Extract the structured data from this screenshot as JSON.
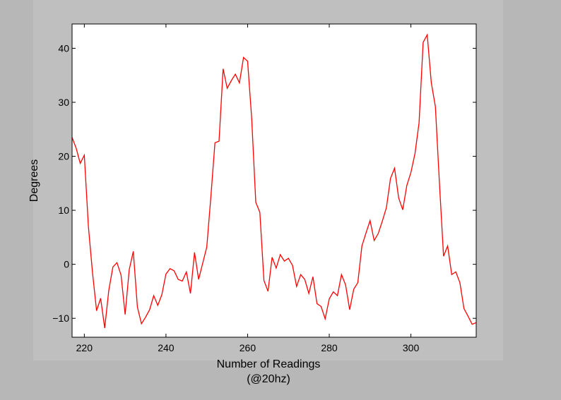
{
  "chart_data": {
    "type": "line",
    "title": "",
    "xlabel": "Number of Readings",
    "xlabel_line2": "(@20hz)",
    "ylabel": "Degrees",
    "xlim": [
      217,
      316
    ],
    "ylim": [
      -13.5,
      44.5
    ],
    "xticks": [
      220,
      240,
      260,
      280,
      300
    ],
    "yticks": [
      -10,
      0,
      10,
      20,
      30,
      40
    ],
    "ytick_labels": [
      "−10",
      "0",
      "10",
      "20",
      "30",
      "40"
    ],
    "grid": false,
    "legend": "none",
    "colors": {
      "line": "#ff0000",
      "plot_background": "#ffffff",
      "frame": "#000000",
      "panel": "#bfbfbf",
      "page": "#b7b7b7"
    },
    "series": [
      {
        "x": [
          217,
          218,
          219,
          220,
          221,
          222,
          223,
          224,
          225,
          226,
          227,
          228,
          229,
          230,
          231,
          232,
          233,
          234,
          235,
          236,
          237,
          238,
          239,
          240,
          241,
          242,
          243,
          244,
          245,
          246,
          247,
          248,
          249,
          250,
          251,
          252,
          253,
          254,
          255,
          256,
          257,
          258,
          259,
          260,
          261,
          262,
          263,
          264,
          265,
          266,
          267,
          268,
          269,
          270,
          271,
          272,
          273,
          274,
          275,
          276,
          277,
          278,
          279,
          280,
          281,
          282,
          283,
          284,
          285,
          286,
          287,
          288,
          289,
          290,
          291,
          292,
          293,
          294,
          295,
          296,
          297,
          298,
          299,
          300,
          301,
          302,
          303,
          304,
          305,
          306,
          307,
          308,
          309,
          310,
          311,
          312,
          313,
          314,
          315,
          316
        ],
        "y": [
          23.5,
          21.5,
          18.7,
          20.2,
          7,
          -1.5,
          -8.6,
          -6.3,
          -11.8,
          -4.8,
          -0.5,
          0.3,
          -2,
          -9.3,
          -1,
          2.4,
          -7.9,
          -11,
          -9.8,
          -8.4,
          -5.8,
          -7.6,
          -5.6,
          -1.8,
          -0.8,
          -1.2,
          -2.8,
          -3.1,
          -1.4,
          -5.4,
          2.2,
          -2.8,
          0.2,
          3.2,
          12.5,
          22.5,
          22.8,
          36.2,
          32.6,
          34,
          35.2,
          33.6,
          38.3,
          37.6,
          27,
          11.5,
          9.6,
          -3,
          -5,
          1.3,
          -0.7,
          1.8,
          0.6,
          1.1,
          -0.2,
          -4.1,
          -1.9,
          -2.8,
          -5.4,
          -2.3,
          -7.3,
          -7.8,
          -10.1,
          -6.4,
          -5.1,
          -5.8,
          -1.9,
          -3.8,
          -8.4,
          -4.6,
          -3.4,
          3.4,
          5.8,
          8.1,
          4.4,
          5.7,
          8,
          10.5,
          15.9,
          17.8,
          12.3,
          10.1,
          14.6,
          17,
          20.5,
          26.2,
          41.1,
          42.5,
          33.6,
          29.2,
          14.9,
          1.5,
          3.4,
          -1.9,
          -1.4,
          -3.4,
          -8.2,
          -9.6,
          -11.1,
          -10.8
        ]
      }
    ]
  }
}
